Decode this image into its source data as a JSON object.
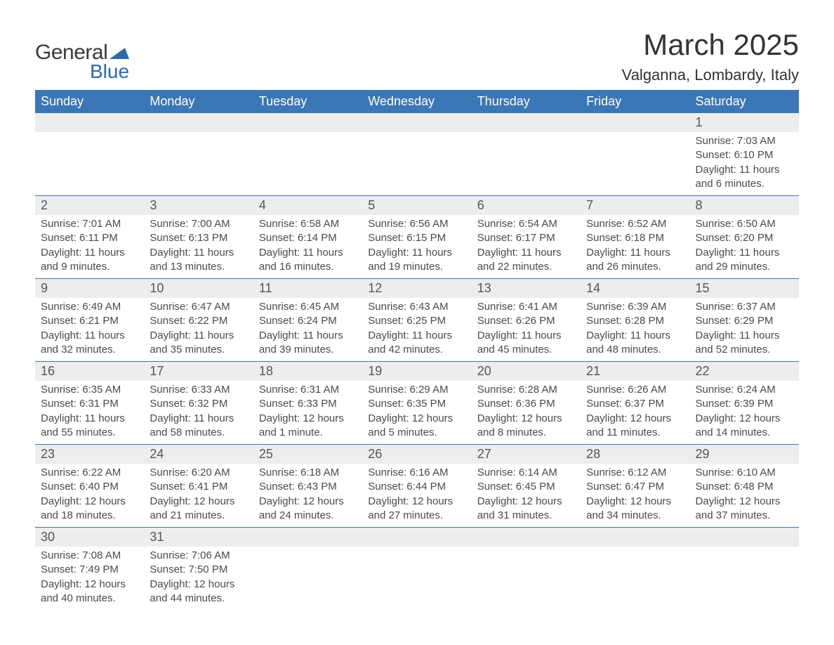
{
  "logo": {
    "brand_word1": "General",
    "brand_word2": "Blue",
    "brand_color": "#2f6aad"
  },
  "header": {
    "month_title": "March 2025",
    "location": "Valganna, Lombardy, Italy"
  },
  "colors": {
    "header_bg": "#3b77b7",
    "header_text": "#ffffff",
    "daynum_bg": "#ededed",
    "row_divider": "#3b77b7",
    "body_text": "#4a4a4a"
  },
  "typography": {
    "month_title_fontsize": 42,
    "location_fontsize": 22,
    "weekday_fontsize": 18,
    "daynum_fontsize": 18,
    "detail_fontsize": 15
  },
  "calendar": {
    "type": "table",
    "weekdays": [
      "Sunday",
      "Monday",
      "Tuesday",
      "Wednesday",
      "Thursday",
      "Friday",
      "Saturday"
    ],
    "weeks": [
      [
        null,
        null,
        null,
        null,
        null,
        null,
        {
          "n": "1",
          "sr": "Sunrise: 7:03 AM",
          "ss": "Sunset: 6:10 PM",
          "d1": "Daylight: 11 hours",
          "d2": "and 6 minutes."
        }
      ],
      [
        {
          "n": "2",
          "sr": "Sunrise: 7:01 AM",
          "ss": "Sunset: 6:11 PM",
          "d1": "Daylight: 11 hours",
          "d2": "and 9 minutes."
        },
        {
          "n": "3",
          "sr": "Sunrise: 7:00 AM",
          "ss": "Sunset: 6:13 PM",
          "d1": "Daylight: 11 hours",
          "d2": "and 13 minutes."
        },
        {
          "n": "4",
          "sr": "Sunrise: 6:58 AM",
          "ss": "Sunset: 6:14 PM",
          "d1": "Daylight: 11 hours",
          "d2": "and 16 minutes."
        },
        {
          "n": "5",
          "sr": "Sunrise: 6:56 AM",
          "ss": "Sunset: 6:15 PM",
          "d1": "Daylight: 11 hours",
          "d2": "and 19 minutes."
        },
        {
          "n": "6",
          "sr": "Sunrise: 6:54 AM",
          "ss": "Sunset: 6:17 PM",
          "d1": "Daylight: 11 hours",
          "d2": "and 22 minutes."
        },
        {
          "n": "7",
          "sr": "Sunrise: 6:52 AM",
          "ss": "Sunset: 6:18 PM",
          "d1": "Daylight: 11 hours",
          "d2": "and 26 minutes."
        },
        {
          "n": "8",
          "sr": "Sunrise: 6:50 AM",
          "ss": "Sunset: 6:20 PM",
          "d1": "Daylight: 11 hours",
          "d2": "and 29 minutes."
        }
      ],
      [
        {
          "n": "9",
          "sr": "Sunrise: 6:49 AM",
          "ss": "Sunset: 6:21 PM",
          "d1": "Daylight: 11 hours",
          "d2": "and 32 minutes."
        },
        {
          "n": "10",
          "sr": "Sunrise: 6:47 AM",
          "ss": "Sunset: 6:22 PM",
          "d1": "Daylight: 11 hours",
          "d2": "and 35 minutes."
        },
        {
          "n": "11",
          "sr": "Sunrise: 6:45 AM",
          "ss": "Sunset: 6:24 PM",
          "d1": "Daylight: 11 hours",
          "d2": "and 39 minutes."
        },
        {
          "n": "12",
          "sr": "Sunrise: 6:43 AM",
          "ss": "Sunset: 6:25 PM",
          "d1": "Daylight: 11 hours",
          "d2": "and 42 minutes."
        },
        {
          "n": "13",
          "sr": "Sunrise: 6:41 AM",
          "ss": "Sunset: 6:26 PM",
          "d1": "Daylight: 11 hours",
          "d2": "and 45 minutes."
        },
        {
          "n": "14",
          "sr": "Sunrise: 6:39 AM",
          "ss": "Sunset: 6:28 PM",
          "d1": "Daylight: 11 hours",
          "d2": "and 48 minutes."
        },
        {
          "n": "15",
          "sr": "Sunrise: 6:37 AM",
          "ss": "Sunset: 6:29 PM",
          "d1": "Daylight: 11 hours",
          "d2": "and 52 minutes."
        }
      ],
      [
        {
          "n": "16",
          "sr": "Sunrise: 6:35 AM",
          "ss": "Sunset: 6:31 PM",
          "d1": "Daylight: 11 hours",
          "d2": "and 55 minutes."
        },
        {
          "n": "17",
          "sr": "Sunrise: 6:33 AM",
          "ss": "Sunset: 6:32 PM",
          "d1": "Daylight: 11 hours",
          "d2": "and 58 minutes."
        },
        {
          "n": "18",
          "sr": "Sunrise: 6:31 AM",
          "ss": "Sunset: 6:33 PM",
          "d1": "Daylight: 12 hours",
          "d2": "and 1 minute."
        },
        {
          "n": "19",
          "sr": "Sunrise: 6:29 AM",
          "ss": "Sunset: 6:35 PM",
          "d1": "Daylight: 12 hours",
          "d2": "and 5 minutes."
        },
        {
          "n": "20",
          "sr": "Sunrise: 6:28 AM",
          "ss": "Sunset: 6:36 PM",
          "d1": "Daylight: 12 hours",
          "d2": "and 8 minutes."
        },
        {
          "n": "21",
          "sr": "Sunrise: 6:26 AM",
          "ss": "Sunset: 6:37 PM",
          "d1": "Daylight: 12 hours",
          "d2": "and 11 minutes."
        },
        {
          "n": "22",
          "sr": "Sunrise: 6:24 AM",
          "ss": "Sunset: 6:39 PM",
          "d1": "Daylight: 12 hours",
          "d2": "and 14 minutes."
        }
      ],
      [
        {
          "n": "23",
          "sr": "Sunrise: 6:22 AM",
          "ss": "Sunset: 6:40 PM",
          "d1": "Daylight: 12 hours",
          "d2": "and 18 minutes."
        },
        {
          "n": "24",
          "sr": "Sunrise: 6:20 AM",
          "ss": "Sunset: 6:41 PM",
          "d1": "Daylight: 12 hours",
          "d2": "and 21 minutes."
        },
        {
          "n": "25",
          "sr": "Sunrise: 6:18 AM",
          "ss": "Sunset: 6:43 PM",
          "d1": "Daylight: 12 hours",
          "d2": "and 24 minutes."
        },
        {
          "n": "26",
          "sr": "Sunrise: 6:16 AM",
          "ss": "Sunset: 6:44 PM",
          "d1": "Daylight: 12 hours",
          "d2": "and 27 minutes."
        },
        {
          "n": "27",
          "sr": "Sunrise: 6:14 AM",
          "ss": "Sunset: 6:45 PM",
          "d1": "Daylight: 12 hours",
          "d2": "and 31 minutes."
        },
        {
          "n": "28",
          "sr": "Sunrise: 6:12 AM",
          "ss": "Sunset: 6:47 PM",
          "d1": "Daylight: 12 hours",
          "d2": "and 34 minutes."
        },
        {
          "n": "29",
          "sr": "Sunrise: 6:10 AM",
          "ss": "Sunset: 6:48 PM",
          "d1": "Daylight: 12 hours",
          "d2": "and 37 minutes."
        }
      ],
      [
        {
          "n": "30",
          "sr": "Sunrise: 7:08 AM",
          "ss": "Sunset: 7:49 PM",
          "d1": "Daylight: 12 hours",
          "d2": "and 40 minutes."
        },
        {
          "n": "31",
          "sr": "Sunrise: 7:06 AM",
          "ss": "Sunset: 7:50 PM",
          "d1": "Daylight: 12 hours",
          "d2": "and 44 minutes."
        },
        null,
        null,
        null,
        null,
        null
      ]
    ]
  }
}
